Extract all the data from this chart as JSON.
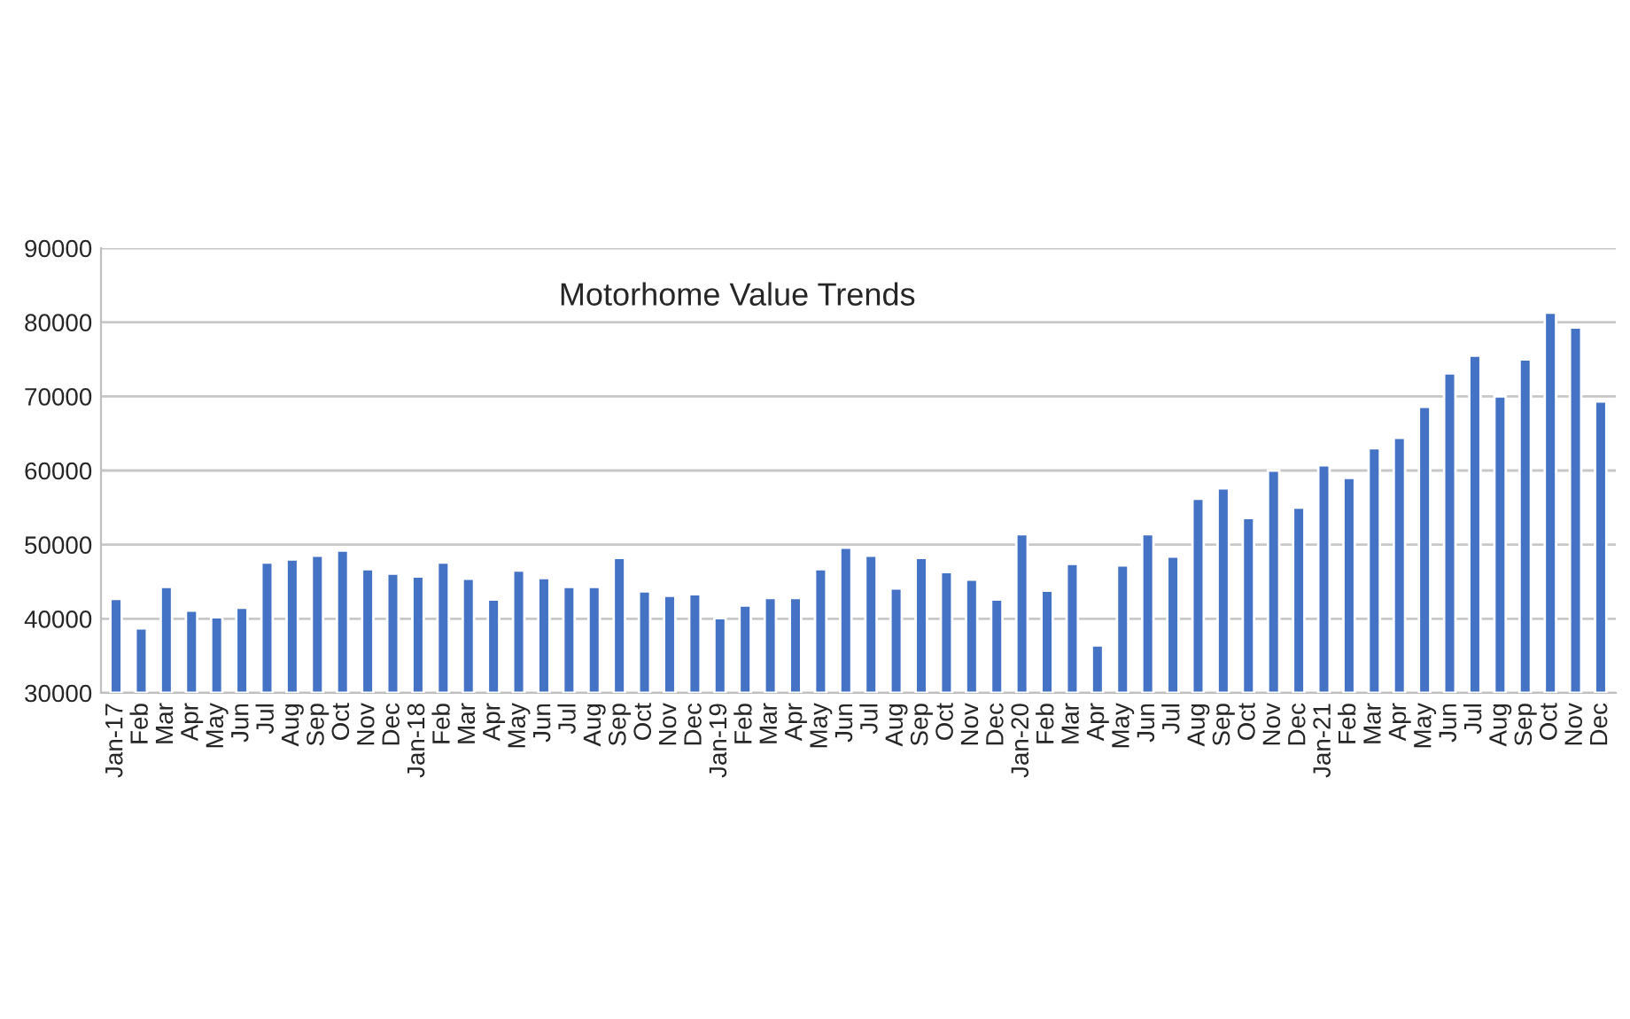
{
  "chart_data": {
    "type": "bar",
    "title": "Motorhome Value Trends",
    "categories": [
      "Jan-17",
      "Feb",
      "Mar",
      "Apr",
      "May",
      "Jun",
      "Jul",
      "Aug",
      "Sep",
      "Oct",
      "Nov",
      "Dec",
      "Jan-18",
      "Feb",
      "Mar",
      "Apr",
      "May",
      "Jun",
      "Jul",
      "Aug",
      "Sep",
      "Oct",
      "Nov",
      "Dec",
      "Jan-19",
      "Feb",
      "Mar",
      "Apr",
      "May",
      "Jun",
      "Jul",
      "Aug",
      "Sep",
      "Oct",
      "Nov",
      "Dec",
      "Jan-20",
      "Feb",
      "Mar",
      "Apr",
      "May",
      "Jun",
      "Jul",
      "Aug",
      "Sep",
      "Oct",
      "Nov",
      "Dec",
      "Jan-21",
      "Feb",
      "Mar",
      "Apr",
      "May",
      "Jun",
      "Jul",
      "Aug",
      "Sep",
      "Oct",
      "Nov",
      "Dec"
    ],
    "values": [
      42700,
      38700,
      44300,
      41100,
      40200,
      41500,
      47600,
      48000,
      48500,
      49200,
      46700,
      46100,
      45700,
      47600,
      45400,
      42600,
      46500,
      45500,
      44300,
      44300,
      48200,
      43700,
      43100,
      43300,
      40100,
      41800,
      42800,
      42800,
      46700,
      49600,
      48500,
      44100,
      48200,
      46300,
      45300,
      42600,
      51400,
      43800,
      47400,
      36400,
      47200,
      51400,
      48400,
      56200,
      57600,
      53600,
      60000,
      55000,
      60700,
      59000,
      63000,
      64400,
      68600,
      73100,
      75500,
      70000,
      75000,
      81300,
      79300,
      69300
    ],
    "color": "#4472c4",
    "ylim": [
      30000,
      90000
    ],
    "yticks": [
      30000,
      40000,
      50000,
      60000,
      70000,
      80000,
      90000
    ],
    "grid": "y"
  }
}
